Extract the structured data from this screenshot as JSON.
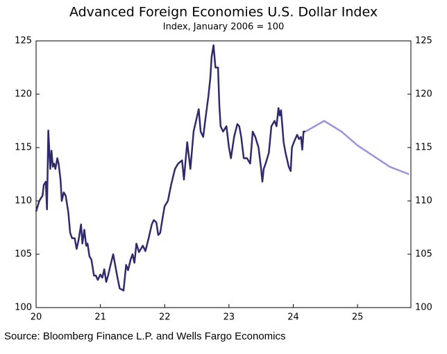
{
  "chart_data": {
    "type": "line",
    "title": "Advanced Foreign Economies U.S. Dollar Index",
    "subtitle": "Index, January 2006 = 100",
    "source": "Source: Bloomberg Finance L.P. and Wells Fargo Economics",
    "xlim": [
      20,
      25.83
    ],
    "xticks": [
      20,
      21,
      22,
      23,
      24,
      25
    ],
    "ylim": [
      100,
      125
    ],
    "yticks": [
      100,
      105,
      110,
      115,
      120,
      125
    ],
    "series": [
      {
        "color": "#2e2a6b",
        "x": [
          20.0,
          20.05,
          20.1,
          20.12,
          20.15,
          20.17,
          20.19,
          20.22,
          20.24,
          20.26,
          20.28,
          20.3,
          20.33,
          20.35,
          20.38,
          20.4,
          20.43,
          20.46,
          20.5,
          20.53,
          20.56,
          20.6,
          20.63,
          20.66,
          20.7,
          20.72,
          20.75,
          20.78,
          20.8,
          20.83,
          20.86,
          20.9,
          20.93,
          20.96,
          21.0,
          21.03,
          21.06,
          21.09,
          21.12,
          21.15,
          21.2,
          21.23,
          21.26,
          21.3,
          21.36,
          21.4,
          21.43,
          21.47,
          21.5,
          21.53,
          21.56,
          21.6,
          21.63,
          21.66,
          21.7,
          21.75,
          21.8,
          21.83,
          21.87,
          21.9,
          21.93,
          21.97,
          22.0,
          22.05,
          22.1,
          22.16,
          22.21,
          22.27,
          22.3,
          22.35,
          22.4,
          22.45,
          22.53,
          22.56,
          22.6,
          22.63,
          22.68,
          22.71,
          22.73,
          22.76,
          22.79,
          22.83,
          22.85,
          22.87,
          22.91,
          22.96,
          23.0,
          23.03,
          23.08,
          23.13,
          23.16,
          23.19,
          23.23,
          23.28,
          23.33,
          23.37,
          23.41,
          23.46,
          23.5,
          23.52,
          23.54,
          23.57,
          23.62,
          23.66,
          23.71,
          23.74,
          23.77,
          23.79,
          23.81,
          23.83,
          23.85,
          23.88,
          23.93,
          23.96,
          23.98,
          24.01,
          24.06,
          24.09,
          24.12,
          24.14,
          24.16,
          24.19
        ],
        "values": [
          109.0,
          110.0,
          110.5,
          111.5,
          111.8,
          109.2,
          116.6,
          113.0,
          114.7,
          113.2,
          113.5,
          113.0,
          114.0,
          113.5,
          112.0,
          110.0,
          110.8,
          110.5,
          109.0,
          107.0,
          106.5,
          106.5,
          105.5,
          106.3,
          107.8,
          106.0,
          107.3,
          105.8,
          106.0,
          104.8,
          104.5,
          103.0,
          103.0,
          102.6,
          103.1,
          102.8,
          103.6,
          102.4,
          103.0,
          103.8,
          105.0,
          104.0,
          103.0,
          101.8,
          101.6,
          104.0,
          103.5,
          104.5,
          105.0,
          104.2,
          106.0,
          105.2,
          105.5,
          105.8,
          105.3,
          106.5,
          107.8,
          108.2,
          108.0,
          106.8,
          107.0,
          108.5,
          109.5,
          110.0,
          111.5,
          113.0,
          113.5,
          113.8,
          112.0,
          115.5,
          113.0,
          116.5,
          118.6,
          116.5,
          116.0,
          117.5,
          119.8,
          121.5,
          123.5,
          124.6,
          122.5,
          122.5,
          119.0,
          117.0,
          116.5,
          117.0,
          115.0,
          114.0,
          116.0,
          117.2,
          117.0,
          116.0,
          114.0,
          114.0,
          113.5,
          116.5,
          116.0,
          115.0,
          113.0,
          111.8,
          113.0,
          113.5,
          114.5,
          117.0,
          117.5,
          117.0,
          118.7,
          118.0,
          118.5,
          117.0,
          115.5,
          114.5,
          113.2,
          112.8,
          115.0,
          115.5,
          116.2,
          115.8,
          116.0,
          114.8,
          116.5,
          116.5
        ]
      },
      {
        "color": "#9b93d9",
        "x": [
          24.19,
          24.48,
          24.75,
          25.0,
          25.25,
          25.5,
          25.8
        ],
        "values": [
          116.5,
          117.5,
          116.5,
          115.2,
          114.2,
          113.2,
          112.5
        ]
      }
    ]
  }
}
